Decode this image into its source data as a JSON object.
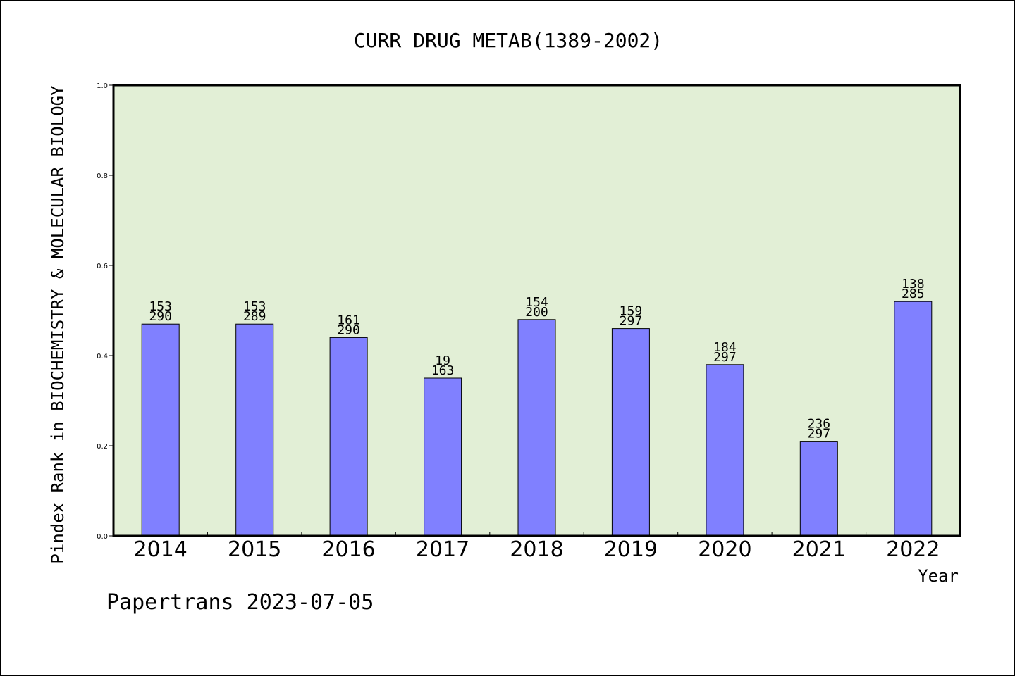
{
  "chart_data": {
    "type": "bar",
    "title": "CURR DRUG METAB(1389-2002)",
    "xlabel": "Year",
    "ylabel": "Pindex Rank in BIOCHEMISTRY & MOLECULAR BIOLOGY",
    "ylim": [
      0,
      1.0
    ],
    "yticks": [
      "0.0",
      "0.2",
      "0.4",
      "0.6",
      "0.8",
      "1.0"
    ],
    "ytick_values": [
      0,
      0.2,
      0.4,
      0.6,
      0.8,
      1.0
    ],
    "categories": [
      "2014",
      "2015",
      "2016",
      "2017",
      "2018",
      "2019",
      "2020",
      "2021",
      "2022"
    ],
    "values": [
      0.47,
      0.47,
      0.44,
      0.35,
      0.48,
      0.46,
      0.38,
      0.21,
      0.52
    ],
    "labels_top": [
      "153",
      "153",
      "161",
      "19",
      "154",
      "159",
      "184",
      "236",
      "138"
    ],
    "labels_bottom": [
      "290",
      "289",
      "290",
      "163",
      "200",
      "297",
      "297",
      "297",
      "285"
    ],
    "grid": false,
    "colors": {
      "bar": "#8080ff",
      "plot_bg": "#e2efd6",
      "axis": "#000000"
    }
  },
  "footer": {
    "credit": "Papertrans 2023-07-05"
  }
}
